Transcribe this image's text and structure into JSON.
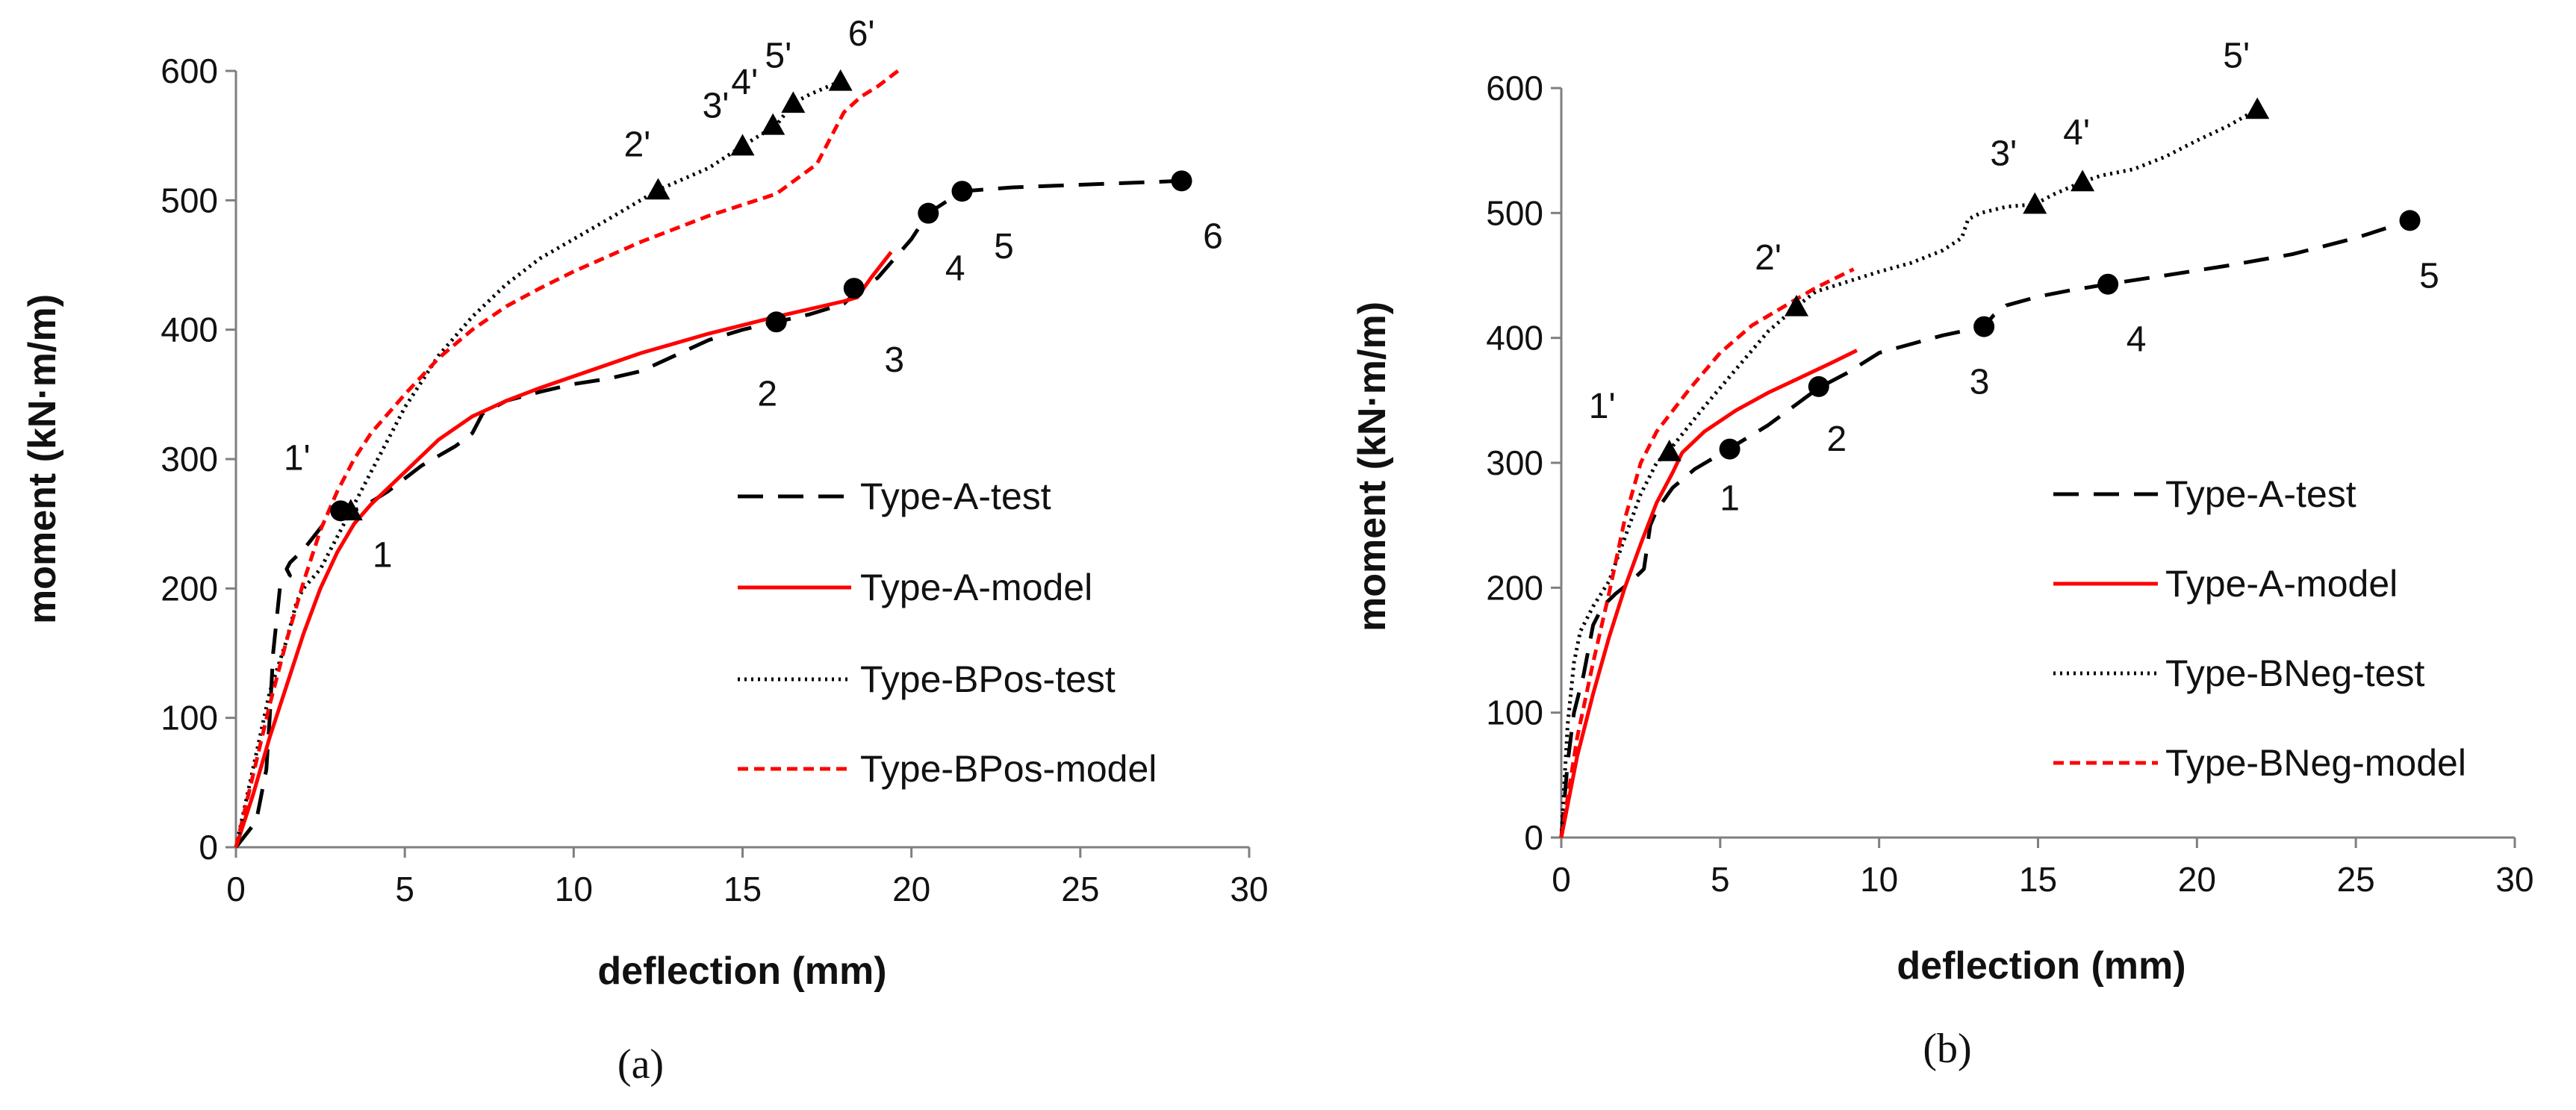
{
  "chart_data": [
    {
      "type": "line",
      "caption": "(a)",
      "xlabel": "deflection (mm)",
      "ylabel": "moment (kN·m/m)",
      "xlim": [
        0,
        30
      ],
      "ylim": [
        0,
        600
      ],
      "xticks": [
        "0",
        "5",
        "10",
        "15",
        "20",
        "25",
        "30"
      ],
      "yticks": [
        "0",
        "100",
        "200",
        "300",
        "400",
        "500",
        "600"
      ],
      "series": [
        {
          "name": "Type-A-test",
          "color": "#000000",
          "dash": "dashed",
          "x": [
            0,
            0.6,
            0.9,
            1.0,
            1.1,
            1.3,
            1.6,
            1.5,
            1.6,
            2.0,
            2.6,
            3.0,
            3.4,
            3.7,
            4.5,
            5.5,
            6.5,
            7.0,
            7.3,
            8.0,
            9.0,
            10.0,
            11.0,
            12.0,
            13.0,
            14.0,
            15.0,
            16.0,
            17.0,
            18.0,
            18.4,
            19.0,
            19.5,
            20.0,
            20.5,
            21.5,
            23.0,
            25.0,
            28.0
          ],
          "y": [
            0,
            20,
            60,
            100,
            150,
            200,
            210,
            215,
            220,
            230,
            250,
            258,
            260,
            262,
            275,
            295,
            310,
            320,
            335,
            345,
            352,
            358,
            362,
            368,
            380,
            392,
            400,
            406,
            412,
            420,
            430,
            440,
            455,
            470,
            490,
            507,
            510,
            512,
            515
          ]
        },
        {
          "name": "Type-A-model",
          "color": "#ff0000",
          "dash": "solid",
          "x": [
            0,
            0.5,
            1.0,
            1.5,
            2.0,
            2.5,
            3.0,
            3.5,
            4.0,
            5.0,
            6.0,
            7.0,
            8.0,
            9.0,
            10.0,
            12.0,
            14.0,
            16.0,
            18.0,
            18.4,
            18.8,
            19.4
          ],
          "y": [
            0,
            40,
            85,
            125,
            165,
            200,
            228,
            250,
            265,
            290,
            315,
            333,
            345,
            355,
            364,
            382,
            397,
            410,
            422,
            425,
            440,
            460
          ]
        },
        {
          "name": "Type-BPos-test",
          "color": "#000000",
          "dash": "dotted",
          "x": [
            0,
            0.5,
            1.0,
            1.5,
            1.8,
            2.0,
            2.5,
            3.0,
            3.5,
            4.0,
            5.0,
            6.0,
            7.0,
            8.0,
            9.0,
            10.0,
            11.0,
            12.5,
            14.0,
            15.0,
            16.0,
            16.5,
            17.0,
            17.9
          ],
          "y": [
            0,
            60,
            120,
            160,
            190,
            200,
            215,
            240,
            265,
            290,
            340,
            380,
            410,
            435,
            455,
            470,
            485,
            508,
            525,
            542,
            558,
            575,
            582,
            592
          ]
        },
        {
          "name": "Type-BPos-model",
          "color": "#ff0000",
          "dash": "short-dashed",
          "x": [
            0,
            0.5,
            1.0,
            1.5,
            2.0,
            2.5,
            3.0,
            3.5,
            4.0,
            5.0,
            6.0,
            7.0,
            8.0,
            9.0,
            10.0,
            12.0,
            14.0,
            16.0,
            17.2,
            17.6,
            18.0,
            18.5,
            19.0,
            19.6
          ],
          "y": [
            0,
            55,
            110,
            160,
            205,
            245,
            275,
            300,
            320,
            350,
            378,
            400,
            418,
            432,
            445,
            468,
            488,
            505,
            528,
            548,
            568,
            580,
            588,
            600
          ]
        }
      ],
      "markers": [
        {
          "label": "1",
          "x": 3.1,
          "y": 260,
          "shape": "circle"
        },
        {
          "label": "2",
          "x": 16.0,
          "y": 406,
          "shape": "circle"
        },
        {
          "label": "3",
          "x": 18.3,
          "y": 432,
          "shape": "circle"
        },
        {
          "label": "4",
          "x": 20.5,
          "y": 490,
          "shape": "circle"
        },
        {
          "label": "5",
          "x": 21.5,
          "y": 507,
          "shape": "circle"
        },
        {
          "label": "6",
          "x": 28.0,
          "y": 515,
          "shape": "circle"
        },
        {
          "label": "1'",
          "x": 3.4,
          "y": 260,
          "shape": "triangle"
        },
        {
          "label": "2'",
          "x": 12.5,
          "y": 508,
          "shape": "triangle"
        },
        {
          "label": "3'",
          "x": 15.0,
          "y": 542,
          "shape": "triangle"
        },
        {
          "label": "4'",
          "x": 15.9,
          "y": 558,
          "shape": "triangle"
        },
        {
          "label": "5'",
          "x": 16.5,
          "y": 575,
          "shape": "triangle"
        },
        {
          "label": "6'",
          "x": 17.9,
          "y": 592,
          "shape": "triangle"
        }
      ]
    },
    {
      "type": "line",
      "caption": "(b)",
      "xlabel": "deflection (mm)",
      "ylabel": "moment (kN·m/m)",
      "xlim": [
        0,
        30
      ],
      "ylim": [
        0,
        600
      ],
      "xticks": [
        "0",
        "5",
        "10",
        "15",
        "20",
        "25",
        "30"
      ],
      "yticks": [
        "0",
        "100",
        "200",
        "300",
        "400",
        "500",
        "600"
      ],
      "series": [
        {
          "name": "Type-A-test",
          "color": "#000000",
          "dash": "dashed",
          "x": [
            0,
            0.2,
            0.4,
            0.7,
            1.0,
            1.3,
            1.7,
            2.2,
            2.6,
            2.8,
            3.0,
            3.5,
            4.2,
            5.2,
            6.5,
            8.1,
            9.0,
            10.0,
            11.0,
            12.0,
            13.3,
            13.6,
            14.0,
            15.0,
            16.0,
            17.2,
            19.0,
            21.0,
            23.0,
            25.0,
            26.7
          ],
          "y": [
            0,
            60,
            100,
            130,
            170,
            185,
            195,
            205,
            215,
            250,
            262,
            280,
            295,
            310,
            330,
            360,
            372,
            388,
            395,
            402,
            409,
            418,
            426,
            433,
            438,
            443,
            450,
            458,
            467,
            480,
            494
          ]
        },
        {
          "name": "Type-A-model",
          "color": "#ff0000",
          "dash": "solid",
          "x": [
            0,
            0.5,
            1.0,
            1.5,
            2.0,
            2.5,
            3.0,
            3.5,
            3.8,
            4.5,
            5.5,
            6.5,
            7.5,
            8.5,
            9.3
          ],
          "y": [
            0,
            65,
            115,
            160,
            200,
            235,
            268,
            292,
            308,
            325,
            342,
            356,
            368,
            380,
            390
          ]
        },
        {
          "name": "Type-BNeg-test",
          "color": "#000000",
          "dash": "dotted",
          "x": [
            0,
            0.2,
            0.4,
            0.6,
            1.0,
            1.5,
            2.0,
            2.5,
            3.0,
            3.4,
            4.5,
            5.5,
            6.5,
            7.4,
            8.0,
            9.0,
            10.0,
            11.0,
            12.0,
            12.6,
            12.8,
            13.2,
            14.0,
            14.9,
            15.5,
            16.4,
            17.0,
            18.0,
            19.0,
            20.0,
            21.0,
            21.9
          ],
          "y": [
            0,
            90,
            140,
            165,
            185,
            205,
            240,
            275,
            300,
            310,
            345,
            375,
            405,
            425,
            437,
            445,
            453,
            460,
            470,
            480,
            495,
            500,
            505,
            507,
            515,
            525,
            530,
            535,
            545,
            558,
            570,
            583
          ]
        },
        {
          "name": "Type-BNeg-model",
          "color": "#ff0000",
          "dash": "short-dashed",
          "x": [
            0,
            0.5,
            1.0,
            1.5,
            2.0,
            2.5,
            3.0,
            4.0,
            5.0,
            6.0,
            7.0,
            8.0,
            9.2
          ],
          "y": [
            0,
            80,
            140,
            195,
            255,
            300,
            325,
            358,
            388,
            410,
            425,
            440,
            455
          ]
        }
      ],
      "markers": [
        {
          "label": "1",
          "x": 5.3,
          "y": 311,
          "shape": "circle"
        },
        {
          "label": "2",
          "x": 8.1,
          "y": 361,
          "shape": "circle"
        },
        {
          "label": "3",
          "x": 13.3,
          "y": 409,
          "shape": "circle"
        },
        {
          "label": "4",
          "x": 17.2,
          "y": 443,
          "shape": "circle"
        },
        {
          "label": "5",
          "x": 26.7,
          "y": 494,
          "shape": "circle"
        },
        {
          "label": "1'",
          "x": 3.4,
          "y": 309,
          "shape": "triangle"
        },
        {
          "label": "2'",
          "x": 7.4,
          "y": 425,
          "shape": "triangle"
        },
        {
          "label": "3'",
          "x": 14.9,
          "y": 507,
          "shape": "triangle"
        },
        {
          "label": "4'",
          "x": 16.4,
          "y": 525,
          "shape": "triangle"
        },
        {
          "label": "5'",
          "x": 21.9,
          "y": 583,
          "shape": "triangle"
        }
      ]
    }
  ]
}
